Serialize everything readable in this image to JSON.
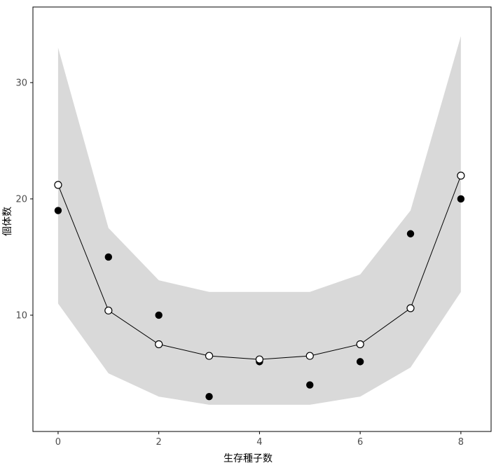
{
  "chart_data": {
    "type": "scatter",
    "title": "",
    "xlabel": "生存種子数",
    "ylabel": "個体数",
    "x": [
      0,
      1,
      2,
      3,
      4,
      5,
      6,
      7,
      8
    ],
    "series": [
      {
        "name": "observed-counts",
        "style": "filled-point",
        "values": [
          19,
          15,
          10,
          3,
          6,
          4,
          6,
          17,
          20
        ]
      },
      {
        "name": "fitted-line",
        "style": "open-point-line",
        "values": [
          21.2,
          10.4,
          7.5,
          6.5,
          6.2,
          6.5,
          7.5,
          10.6,
          22
        ]
      },
      {
        "name": "prediction-band-lower",
        "style": "ribbon-lower",
        "values": [
          11,
          5,
          3,
          2.3,
          2.3,
          2.3,
          3,
          5.5,
          12
        ]
      },
      {
        "name": "prediction-band-upper",
        "style": "ribbon-upper",
        "values": [
          33,
          17.5,
          13,
          12,
          12,
          12,
          13.5,
          19,
          34
        ]
      }
    ],
    "xlim": [
      -0.5,
      8.6
    ],
    "ylim": [
      0,
      36.5
    ],
    "xticks": [
      0,
      2,
      4,
      6,
      8
    ],
    "yticks": [
      10,
      20,
      30
    ],
    "grid": false,
    "legend": "none",
    "colors": {
      "ribbon": "#d9d9d9",
      "line": "#000000",
      "point_fill": "#000000",
      "open_point_fill": "#ffffff",
      "panel_border": "#000000",
      "tick_label": "#4d4d4d",
      "background": "#ffffff"
    }
  }
}
